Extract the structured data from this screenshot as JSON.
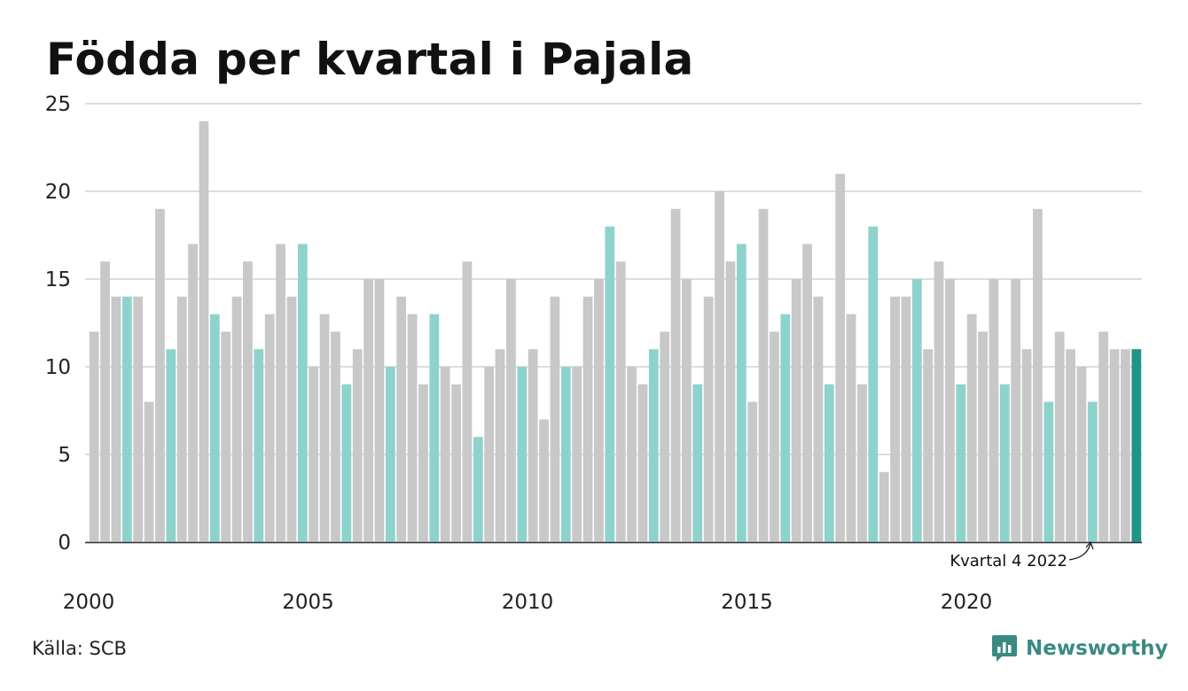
{
  "title": "Födda per kvartal i Pajala",
  "source": "Källa: SCB",
  "brand": {
    "name": "Newsworthy",
    "icon": "newsworthy-logo-icon",
    "color": "#3a8a83"
  },
  "annotation": {
    "text": "Kvartal 4 2022"
  },
  "chart_data": {
    "type": "bar",
    "title": "Födda per kvartal i Pajala",
    "xlabel": "",
    "ylabel": "",
    "ylim": [
      0,
      25
    ],
    "yticks": [
      "0",
      "5",
      "10",
      "15",
      "20",
      "25"
    ],
    "xticks": [
      "2000",
      "2005",
      "2010",
      "2015",
      "2020"
    ],
    "grid": true,
    "colors": {
      "default": "#c8c8c8",
      "quarter4": "#8dd3cc",
      "latest": "#1f9487"
    },
    "categories": [
      "2000 K1",
      "2000 K2",
      "2000 K3",
      "2000 K4",
      "2001 K1",
      "2001 K2",
      "2001 K3",
      "2001 K4",
      "2002 K1",
      "2002 K2",
      "2002 K3",
      "2002 K4",
      "2003 K1",
      "2003 K2",
      "2003 K3",
      "2003 K4",
      "2004 K1",
      "2004 K2",
      "2004 K3",
      "2004 K4",
      "2005 K1",
      "2005 K2",
      "2005 K3",
      "2005 K4",
      "2006 K1",
      "2006 K2",
      "2006 K3",
      "2006 K4",
      "2007 K1",
      "2007 K2",
      "2007 K3",
      "2007 K4",
      "2008 K1",
      "2008 K2",
      "2008 K3",
      "2008 K4",
      "2009 K1",
      "2009 K2",
      "2009 K3",
      "2009 K4",
      "2010 K1",
      "2010 K2",
      "2010 K3",
      "2010 K4",
      "2011 K1",
      "2011 K2",
      "2011 K3",
      "2011 K4",
      "2012 K1",
      "2012 K2",
      "2012 K3",
      "2012 K4",
      "2013 K1",
      "2013 K2",
      "2013 K3",
      "2013 K4",
      "2014 K1",
      "2014 K2",
      "2014 K3",
      "2014 K4",
      "2015 K1",
      "2015 K2",
      "2015 K3",
      "2015 K4",
      "2016 K1",
      "2016 K2",
      "2016 K3",
      "2016 K4",
      "2017 K1",
      "2017 K2",
      "2017 K3",
      "2017 K4",
      "2018 K1",
      "2018 K2",
      "2018 K3",
      "2018 K4",
      "2019 K1",
      "2019 K2",
      "2019 K3",
      "2019 K4",
      "2020 K1",
      "2020 K2",
      "2020 K3",
      "2020 K4",
      "2021 K1",
      "2021 K2",
      "2021 K3",
      "2021 K4",
      "2022 K1",
      "2022 K2",
      "2022 K3",
      "2022 K4",
      "2023 K1",
      "2023 K2",
      "2023 K3",
      "2023 K4"
    ],
    "values": [
      12,
      16,
      14,
      14,
      14,
      8,
      19,
      11,
      14,
      17,
      24,
      13,
      12,
      14,
      16,
      11,
      13,
      17,
      14,
      17,
      10,
      13,
      12,
      9,
      11,
      15,
      15,
      10,
      14,
      13,
      9,
      13,
      10,
      9,
      16,
      6,
      10,
      11,
      15,
      10,
      11,
      7,
      14,
      10,
      10,
      14,
      15,
      18,
      16,
      10,
      9,
      11,
      12,
      19,
      15,
      9,
      14,
      20,
      16,
      17,
      8,
      19,
      12,
      13,
      15,
      17,
      14,
      9,
      21,
      13,
      9,
      18,
      4,
      14,
      14,
      15,
      11,
      16,
      15,
      9,
      13,
      12,
      15,
      9,
      15,
      11,
      19,
      8,
      12,
      11,
      10,
      8,
      12,
      11,
      11,
      11
    ]
  }
}
